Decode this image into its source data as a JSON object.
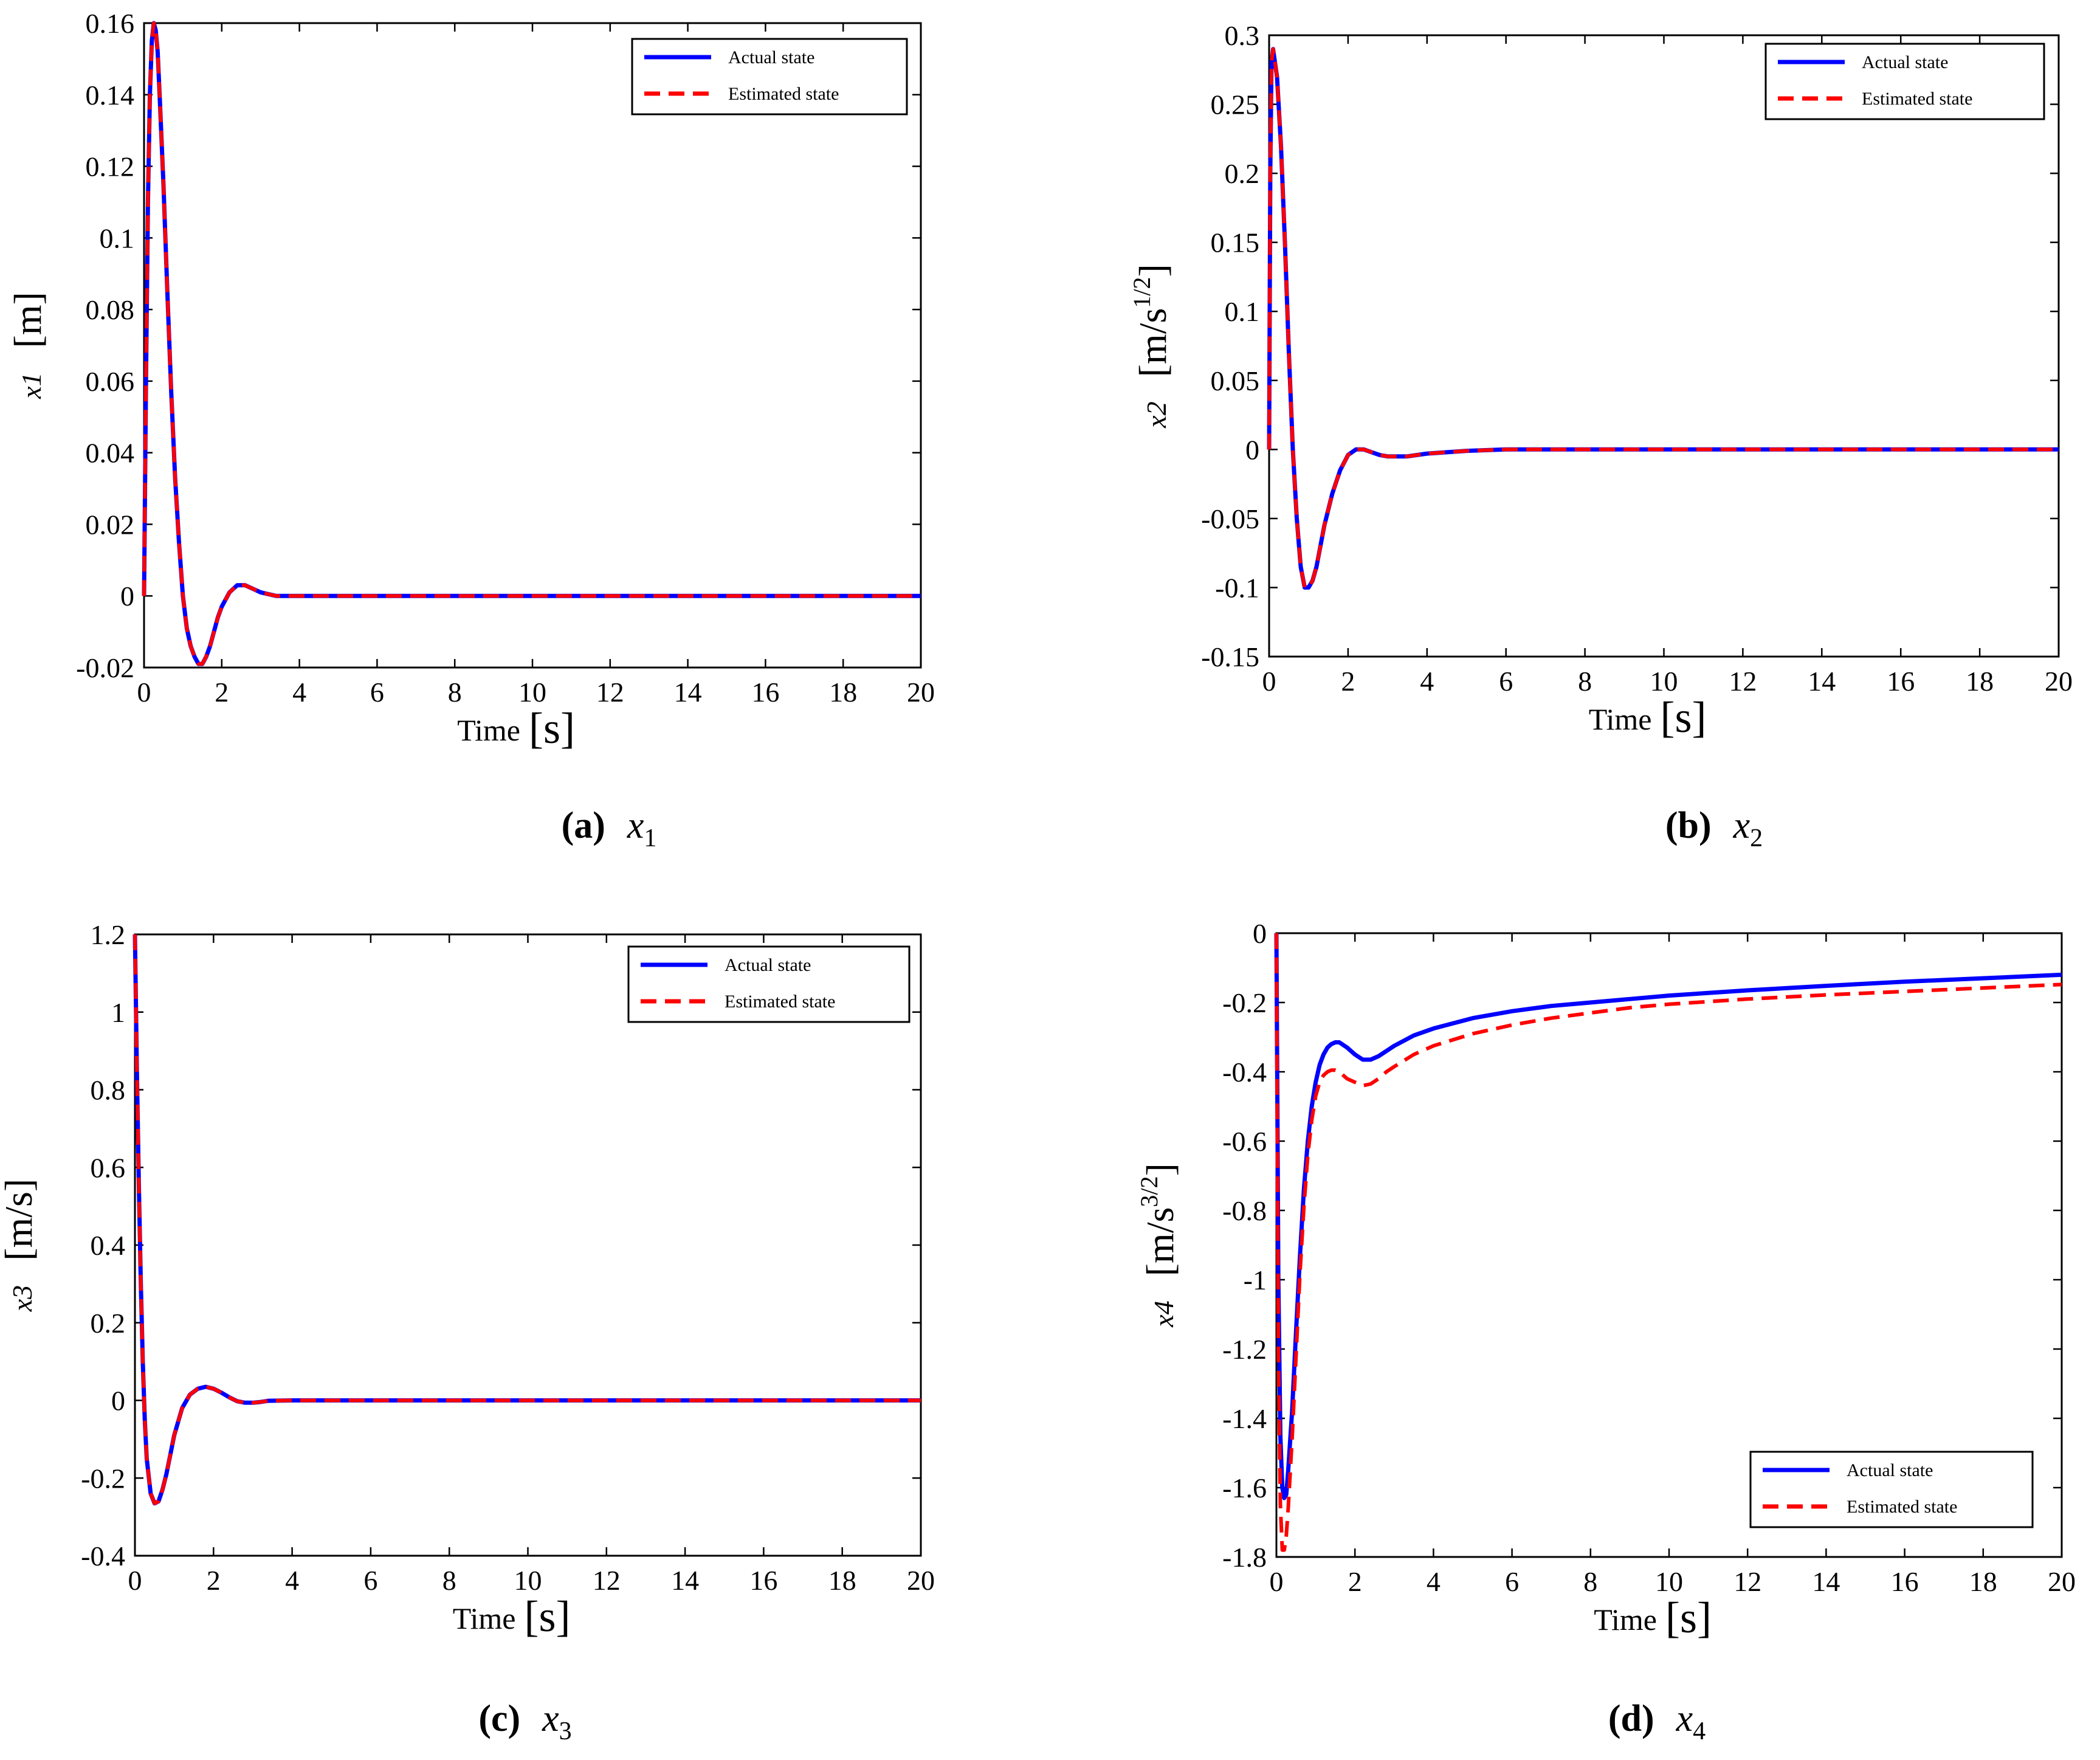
{
  "chart_data": [
    {
      "id": "a",
      "type": "line",
      "caption_letter": "(a)",
      "caption_symbol": "x",
      "caption_sub": "1",
      "ylabel_var": "x1",
      "ylabel_unit": "[m]",
      "ylabel_unit_sup": "",
      "ylabel_unit_tail": "",
      "xlabel_word": "Time",
      "xlabel_unit": "[s]",
      "xlim": [
        0,
        20
      ],
      "ylim": [
        -0.02,
        0.16
      ],
      "xticks": [
        0,
        2,
        4,
        6,
        8,
        10,
        12,
        14,
        16,
        18,
        20
      ],
      "yticks": [
        -0.02,
        0,
        0.02,
        0.04,
        0.06,
        0.08,
        0.1,
        0.12,
        0.14,
        0.16
      ],
      "ytick_labels": [
        "-0.02",
        "0",
        "0.02",
        "0.04",
        "0.06",
        "0.08",
        "0.1",
        "0.12",
        "0.14",
        "0.16"
      ],
      "legend_position": "top-right",
      "series": [
        {
          "name": "Actual state",
          "color": "#0000ff",
          "style": "solid",
          "x": [
            0,
            0.05,
            0.1,
            0.15,
            0.2,
            0.25,
            0.3,
            0.35,
            0.4,
            0.5,
            0.6,
            0.7,
            0.8,
            0.9,
            1.0,
            1.1,
            1.2,
            1.3,
            1.4,
            1.5,
            1.6,
            1.7,
            1.8,
            1.9,
            2.0,
            2.2,
            2.4,
            2.6,
            2.8,
            3.0,
            3.2,
            3.4,
            4,
            6,
            8,
            10,
            12,
            14,
            16,
            18,
            20
          ],
          "y": [
            0,
            0.06,
            0.11,
            0.14,
            0.155,
            0.16,
            0.158,
            0.152,
            0.14,
            0.115,
            0.085,
            0.057,
            0.033,
            0.015,
            0.0,
            -0.009,
            -0.014,
            -0.017,
            -0.019,
            -0.019,
            -0.017,
            -0.014,
            -0.01,
            -0.006,
            -0.003,
            0.001,
            0.003,
            0.003,
            0.002,
            0.001,
            0.0005,
            0,
            0,
            0,
            0,
            0,
            0,
            0,
            0,
            0,
            0
          ]
        },
        {
          "name": "Estimated state",
          "color": "#ff0000",
          "style": "dashed",
          "x": [
            0,
            0.05,
            0.1,
            0.15,
            0.2,
            0.25,
            0.3,
            0.35,
            0.4,
            0.5,
            0.6,
            0.7,
            0.8,
            0.9,
            1.0,
            1.1,
            1.2,
            1.3,
            1.4,
            1.5,
            1.6,
            1.7,
            1.8,
            1.9,
            2.0,
            2.2,
            2.4,
            2.6,
            2.8,
            3.0,
            3.2,
            3.4,
            4,
            6,
            8,
            10,
            12,
            14,
            16,
            18,
            20
          ],
          "y": [
            0,
            0.06,
            0.11,
            0.14,
            0.155,
            0.16,
            0.158,
            0.152,
            0.14,
            0.115,
            0.085,
            0.057,
            0.033,
            0.015,
            0.0,
            -0.009,
            -0.014,
            -0.017,
            -0.019,
            -0.019,
            -0.017,
            -0.014,
            -0.01,
            -0.006,
            -0.003,
            0.001,
            0.003,
            0.003,
            0.002,
            0.001,
            0.0005,
            0,
            0,
            0,
            0,
            0,
            0,
            0,
            0,
            0,
            0
          ]
        }
      ]
    },
    {
      "id": "b",
      "type": "line",
      "caption_letter": "(b)",
      "caption_symbol": "x",
      "caption_sub": "2",
      "ylabel_var": "x2",
      "ylabel_unit": "[m/s",
      "ylabel_unit_sup": "1/2",
      "ylabel_unit_tail": "]",
      "xlabel_word": "Time",
      "xlabel_unit": "[s]",
      "xlim": [
        0,
        20
      ],
      "ylim": [
        -0.15,
        0.3
      ],
      "xticks": [
        0,
        2,
        4,
        6,
        8,
        10,
        12,
        14,
        16,
        18,
        20
      ],
      "yticks": [
        -0.15,
        -0.1,
        -0.05,
        0,
        0.05,
        0.1,
        0.15,
        0.2,
        0.25,
        0.3
      ],
      "ytick_labels": [
        "-0.15",
        "-0.1",
        "-0.05",
        "0",
        "0.05",
        "0.1",
        "0.15",
        "0.2",
        "0.25",
        "0.3"
      ],
      "legend_position": "top-right",
      "series": [
        {
          "name": "Actual state",
          "color": "#0000ff",
          "style": "solid",
          "x": [
            0,
            0.03,
            0.06,
            0.1,
            0.15,
            0.2,
            0.3,
            0.4,
            0.5,
            0.6,
            0.7,
            0.8,
            0.9,
            1.0,
            1.1,
            1.2,
            1.3,
            1.4,
            1.6,
            1.8,
            2.0,
            2.2,
            2.4,
            2.6,
            2.8,
            3.0,
            3.5,
            4,
            5,
            6,
            8,
            10,
            12,
            14,
            16,
            18,
            20
          ],
          "y": [
            0,
            0.2,
            0.28,
            0.29,
            0.28,
            0.27,
            0.22,
            0.15,
            0.07,
            0.0,
            -0.05,
            -0.085,
            -0.1,
            -0.1,
            -0.095,
            -0.085,
            -0.07,
            -0.055,
            -0.032,
            -0.015,
            -0.004,
            0.0,
            0.0,
            -0.002,
            -0.004,
            -0.005,
            -0.005,
            -0.003,
            -0.001,
            0,
            0,
            0,
            0,
            0,
            0,
            0,
            0
          ]
        },
        {
          "name": "Estimated state",
          "color": "#ff0000",
          "style": "dashed",
          "x": [
            0,
            0.03,
            0.06,
            0.1,
            0.15,
            0.2,
            0.3,
            0.4,
            0.5,
            0.6,
            0.7,
            0.8,
            0.9,
            1.0,
            1.1,
            1.2,
            1.3,
            1.4,
            1.6,
            1.8,
            2.0,
            2.2,
            2.4,
            2.6,
            2.8,
            3.0,
            3.5,
            4,
            5,
            6,
            8,
            10,
            12,
            14,
            16,
            18,
            20
          ],
          "y": [
            0,
            0.2,
            0.28,
            0.29,
            0.28,
            0.27,
            0.22,
            0.15,
            0.07,
            0.0,
            -0.05,
            -0.085,
            -0.1,
            -0.1,
            -0.095,
            -0.085,
            -0.07,
            -0.055,
            -0.032,
            -0.015,
            -0.004,
            0.0,
            0.0,
            -0.002,
            -0.004,
            -0.005,
            -0.005,
            -0.003,
            -0.001,
            0,
            0,
            0,
            0,
            0,
            0,
            0,
            0
          ]
        }
      ]
    },
    {
      "id": "c",
      "type": "line",
      "caption_letter": "(c)",
      "caption_symbol": "x",
      "caption_sub": "3",
      "ylabel_var": "x3",
      "ylabel_unit": "[m/s]",
      "ylabel_unit_sup": "",
      "ylabel_unit_tail": "",
      "xlabel_word": "Time",
      "xlabel_unit": "[s]",
      "xlim": [
        0,
        20
      ],
      "ylim": [
        -0.4,
        1.2
      ],
      "xticks": [
        0,
        2,
        4,
        6,
        8,
        10,
        12,
        14,
        16,
        18,
        20
      ],
      "yticks": [
        -0.4,
        -0.2,
        0,
        0.2,
        0.4,
        0.6,
        0.8,
        1.0,
        1.2
      ],
      "ytick_labels": [
        "-0.4",
        "-0.2",
        "0",
        "0.2",
        "0.4",
        "0.6",
        "0.8",
        "1",
        "1.2"
      ],
      "legend_position": "top-right",
      "series": [
        {
          "name": "Actual state",
          "color": "#0000ff",
          "style": "solid",
          "x": [
            0,
            0.05,
            0.1,
            0.15,
            0.2,
            0.25,
            0.3,
            0.4,
            0.5,
            0.6,
            0.7,
            0.8,
            0.9,
            1.0,
            1.2,
            1.4,
            1.6,
            1.8,
            2.0,
            2.2,
            2.4,
            2.6,
            2.8,
            3.0,
            3.2,
            3.4,
            4,
            6,
            8,
            10,
            12,
            14,
            16,
            18,
            20
          ],
          "y": [
            1.2,
            0.85,
            0.55,
            0.3,
            0.1,
            -0.05,
            -0.15,
            -0.24,
            -0.265,
            -0.26,
            -0.23,
            -0.19,
            -0.14,
            -0.09,
            -0.02,
            0.015,
            0.03,
            0.035,
            0.03,
            0.02,
            0.008,
            -0.002,
            -0.006,
            -0.006,
            -0.004,
            -0.001,
            0,
            0,
            0,
            0,
            0,
            0,
            0,
            0,
            0
          ]
        },
        {
          "name": "Estimated state",
          "color": "#ff0000",
          "style": "dashed",
          "x": [
            0,
            0.05,
            0.1,
            0.15,
            0.2,
            0.25,
            0.3,
            0.4,
            0.5,
            0.6,
            0.7,
            0.8,
            0.9,
            1.0,
            1.2,
            1.4,
            1.6,
            1.8,
            2.0,
            2.2,
            2.4,
            2.6,
            2.8,
            3.0,
            3.2,
            3.4,
            4,
            6,
            8,
            10,
            12,
            14,
            16,
            18,
            20
          ],
          "y": [
            1.2,
            0.85,
            0.55,
            0.3,
            0.1,
            -0.05,
            -0.15,
            -0.24,
            -0.265,
            -0.26,
            -0.23,
            -0.19,
            -0.14,
            -0.09,
            -0.02,
            0.015,
            0.03,
            0.035,
            0.03,
            0.02,
            0.008,
            -0.002,
            -0.006,
            -0.006,
            -0.004,
            -0.001,
            0,
            0,
            0,
            0,
            0,
            0,
            0,
            0,
            0
          ]
        }
      ]
    },
    {
      "id": "d",
      "type": "line",
      "caption_letter": "(d)",
      "caption_symbol": "x",
      "caption_sub": "4",
      "ylabel_var": "x4",
      "ylabel_unit": "[m/s",
      "ylabel_unit_sup": "3/2",
      "ylabel_unit_tail": "]",
      "xlabel_word": "Time",
      "xlabel_unit": "[s]",
      "xlim": [
        0,
        20
      ],
      "ylim": [
        -1.8,
        0
      ],
      "xticks": [
        0,
        2,
        4,
        6,
        8,
        10,
        12,
        14,
        16,
        18,
        20
      ],
      "yticks": [
        -1.8,
        -1.6,
        -1.4,
        -1.2,
        -1.0,
        -0.8,
        -0.6,
        -0.4,
        -0.2,
        0
      ],
      "ytick_labels": [
        "-1.8",
        "-1.6",
        "-1.4",
        "-1.2",
        "-1",
        "-0.8",
        "-0.6",
        "-0.4",
        "-0.2",
        "0"
      ],
      "legend_position": "bottom-right",
      "series": [
        {
          "name": "Actual state",
          "color": "#0000ff",
          "style": "solid",
          "x": [
            0,
            0.05,
            0.1,
            0.15,
            0.2,
            0.25,
            0.3,
            0.4,
            0.5,
            0.6,
            0.7,
            0.8,
            0.9,
            1.0,
            1.1,
            1.2,
            1.3,
            1.4,
            1.5,
            1.6,
            1.8,
            2.0,
            2.2,
            2.4,
            2.6,
            2.8,
            3.0,
            3.5,
            4,
            5,
            6,
            7,
            8,
            9,
            10,
            12,
            14,
            16,
            18,
            20
          ],
          "y": [
            0,
            -1.0,
            -1.45,
            -1.6,
            -1.63,
            -1.62,
            -1.55,
            -1.38,
            -1.15,
            -0.93,
            -0.74,
            -0.6,
            -0.5,
            -0.43,
            -0.38,
            -0.35,
            -0.33,
            -0.32,
            -0.315,
            -0.315,
            -0.33,
            -0.35,
            -0.365,
            -0.365,
            -0.355,
            -0.34,
            -0.325,
            -0.295,
            -0.275,
            -0.245,
            -0.225,
            -0.21,
            -0.2,
            -0.19,
            -0.18,
            -0.165,
            -0.152,
            -0.14,
            -0.13,
            -0.12
          ]
        },
        {
          "name": "Estimated state",
          "color": "#ff0000",
          "style": "dashed",
          "x": [
            0,
            0.05,
            0.1,
            0.15,
            0.2,
            0.25,
            0.3,
            0.4,
            0.5,
            0.6,
            0.7,
            0.8,
            0.9,
            1.0,
            1.1,
            1.2,
            1.3,
            1.4,
            1.5,
            1.6,
            1.8,
            2.0,
            2.2,
            2.4,
            2.6,
            2.8,
            3.0,
            3.5,
            4,
            5,
            6,
            7,
            8,
            9,
            10,
            12,
            14,
            16,
            18,
            20
          ],
          "y": [
            0,
            -1.2,
            -1.65,
            -1.78,
            -1.78,
            -1.74,
            -1.66,
            -1.46,
            -1.22,
            -0.98,
            -0.79,
            -0.64,
            -0.54,
            -0.47,
            -0.43,
            -0.41,
            -0.4,
            -0.395,
            -0.395,
            -0.4,
            -0.42,
            -0.43,
            -0.44,
            -0.435,
            -0.42,
            -0.4,
            -0.385,
            -0.35,
            -0.325,
            -0.29,
            -0.265,
            -0.245,
            -0.23,
            -0.215,
            -0.205,
            -0.19,
            -0.178,
            -0.168,
            -0.158,
            -0.148
          ]
        }
      ]
    }
  ]
}
